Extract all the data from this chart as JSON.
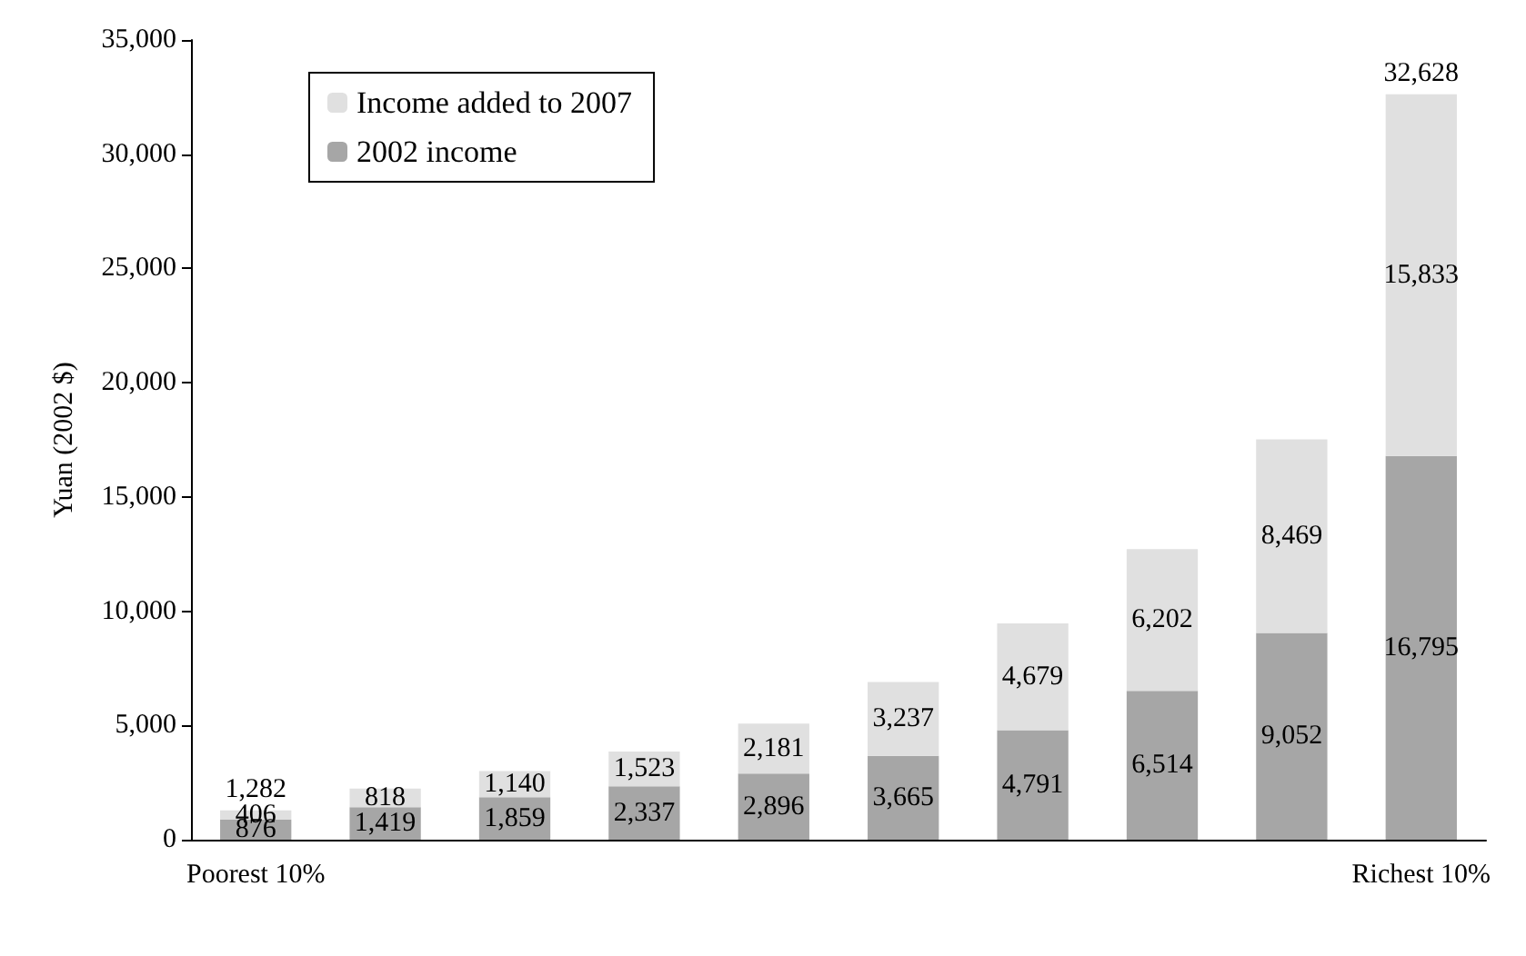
{
  "chart_data": {
    "type": "bar",
    "stacked": true,
    "ylabel": "Yuan (2002 $)",
    "categories": [
      "Poorest 10%",
      null,
      null,
      null,
      null,
      null,
      null,
      null,
      null,
      "Richest 10%"
    ],
    "series": [
      {
        "name": "2002 income",
        "color": "#a6a6a6",
        "values": [
          876,
          1419,
          1859,
          2337,
          2896,
          3665,
          4791,
          6514,
          9052,
          16795
        ],
        "value_labels": [
          "876",
          "1,419",
          "1,859",
          "2,337",
          "2,896",
          "3,665",
          "4,791",
          "6,514",
          "9,052",
          "16,795"
        ]
      },
      {
        "name": "Income added to 2007",
        "color": "#e0e0e0",
        "values": [
          406,
          818,
          1140,
          1523,
          2181,
          3237,
          4679,
          6202,
          8469,
          15833
        ],
        "value_labels": [
          "406",
          "818",
          "1,140",
          "1,523",
          "2,181",
          "3,237",
          "4,679",
          "6,202",
          "8,469",
          "15,833"
        ]
      }
    ],
    "totals": [
      "1,282",
      null,
      null,
      null,
      null,
      null,
      null,
      null,
      null,
      "32,628"
    ],
    "ylim": [
      0,
      35000
    ],
    "yticks": [
      {
        "value": 0,
        "label": "0"
      },
      {
        "value": 5000,
        "label": "5,000"
      },
      {
        "value": 10000,
        "label": "10,000"
      },
      {
        "value": 15000,
        "label": "15,000"
      },
      {
        "value": 20000,
        "label": "20,000"
      },
      {
        "value": 25000,
        "label": "25,000"
      },
      {
        "value": 30000,
        "label": "30,000"
      },
      {
        "value": 35000,
        "label": "35,000"
      }
    ],
    "grid": false,
    "legend": "top left"
  }
}
